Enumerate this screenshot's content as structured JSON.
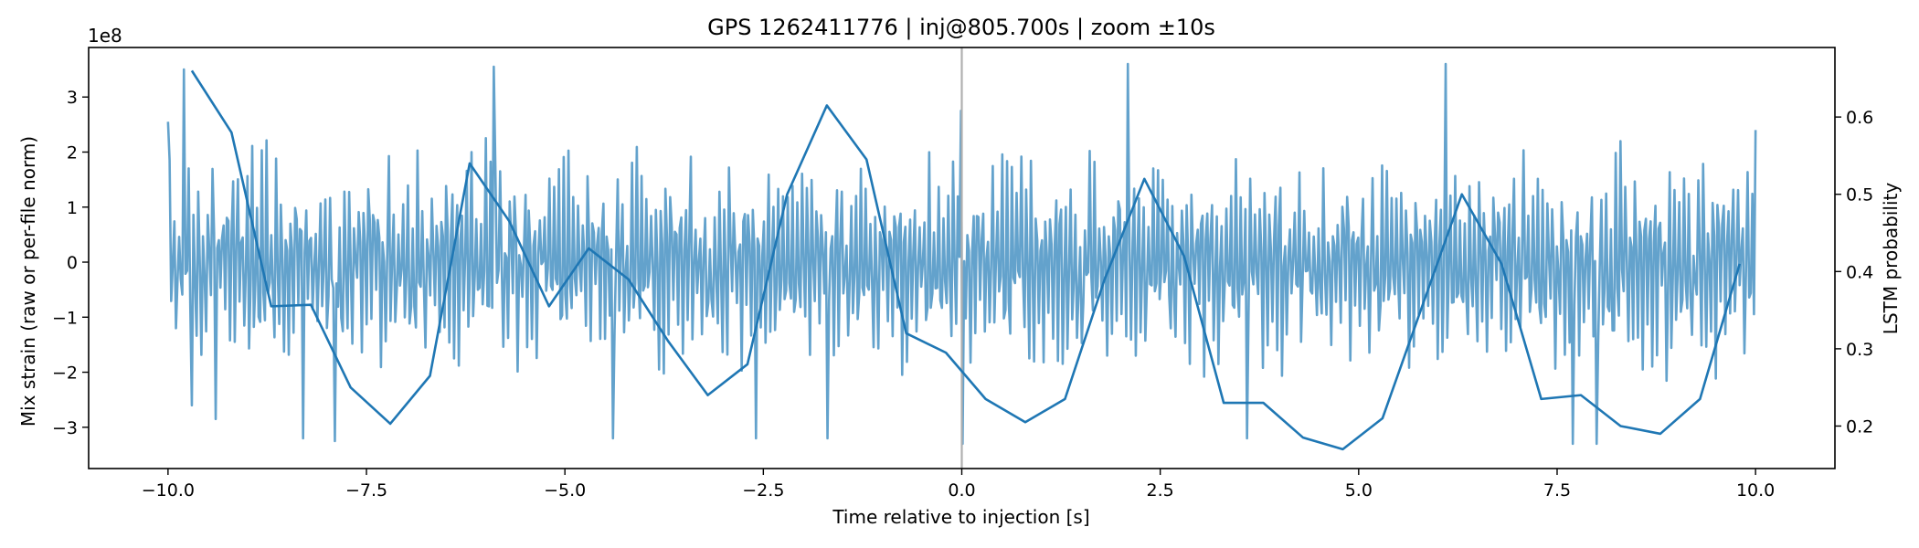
{
  "chart_data": {
    "type": "line",
    "title": "GPS 1262411776 | inj@805.700s | zoom ±10s",
    "xlabel": "Time relative to injection [s]",
    "ylabel_left": "Mix strain (raw or per-file norm)",
    "ylabel_right": "LSTM probability",
    "left_axis_offset_text": "1e8",
    "xlim": [
      -11.0,
      11.0
    ],
    "ylim_left": [
      -3.75,
      3.9
    ],
    "ylim_right": [
      0.145,
      0.69
    ],
    "x_ticks": [
      -10.0,
      -7.5,
      -5.0,
      -2.5,
      0.0,
      2.5,
      5.0,
      7.5,
      10.0
    ],
    "x_tick_labels": [
      "−10.0",
      "−7.5",
      "−5.0",
      "−2.5",
      "0.0",
      "2.5",
      "5.0",
      "7.5",
      "10.0"
    ],
    "y_left_ticks": [
      -3,
      -2,
      -1,
      0,
      1,
      2,
      3
    ],
    "y_left_tick_labels": [
      "−3",
      "−2",
      "−1",
      "0",
      "1",
      "2",
      "3"
    ],
    "y_right_ticks": [
      0.2,
      0.3,
      0.4,
      0.5,
      0.6
    ],
    "y_right_tick_labels": [
      "0.2",
      "0.3",
      "0.4",
      "0.5",
      "0.6"
    ],
    "grid": false,
    "legend": "none",
    "injection_marker_x": 0.0,
    "colors": {
      "strain": "#5b9dc9",
      "probability": "#1f77b4",
      "marker": "#b0b0b0",
      "axes": "#000000"
    },
    "series": [
      {
        "axis": "left",
        "units": "1e8",
        "x_start": -10.0,
        "x_end": 10.0,
        "samples": 1000,
        "note_values_generated": false,
        "values_summary": {
          "min": -3.3,
          "max": 3.6,
          "dominant_period_s": 0.1
        },
        "keypoints": [
          {
            "x": -10.0,
            "y": 2.55
          },
          {
            "x": -9.9,
            "y": -1.2
          },
          {
            "x": -9.8,
            "y": 3.5
          },
          {
            "x": -9.7,
            "y": -2.6
          },
          {
            "x": -9.4,
            "y": -2.85
          },
          {
            "x": -8.3,
            "y": -3.2
          },
          {
            "x": -7.9,
            "y": -3.25
          },
          {
            "x": -5.9,
            "y": 3.55
          },
          {
            "x": -4.4,
            "y": -3.2
          },
          {
            "x": -2.6,
            "y": -3.2
          },
          {
            "x": -1.7,
            "y": -3.2
          },
          {
            "x": 0.0,
            "y": 2.75
          },
          {
            "x": 0.0,
            "y": -3.3
          },
          {
            "x": 2.1,
            "y": 3.6
          },
          {
            "x": 3.6,
            "y": -3.2
          },
          {
            "x": 6.1,
            "y": 3.6
          },
          {
            "x": 7.7,
            "y": -3.3
          },
          {
            "x": 8.0,
            "y": -3.3
          },
          {
            "x": 10.0,
            "y": 2.4
          }
        ]
      },
      {
        "axis": "right",
        "x": [
          -9.7,
          -9.2,
          -8.7,
          -8.2,
          -7.7,
          -7.2,
          -6.7,
          -6.2,
          -5.7,
          -5.2,
          -4.7,
          -4.2,
          -3.7,
          -3.2,
          -2.7,
          -2.2,
          -1.7,
          -1.2,
          -0.7,
          -0.2,
          0.3,
          0.8,
          1.3,
          1.8,
          2.3,
          2.8,
          3.3,
          3.8,
          4.3,
          4.8,
          5.3,
          5.8,
          6.3,
          6.8,
          7.3,
          7.8,
          8.3,
          8.8,
          9.3,
          9.8
        ],
        "y": [
          0.66,
          0.58,
          0.355,
          0.357,
          0.25,
          0.203,
          0.265,
          0.54,
          0.465,
          0.355,
          0.43,
          0.39,
          0.31,
          0.24,
          0.28,
          0.5,
          0.615,
          0.545,
          0.32,
          0.295,
          0.235,
          0.205,
          0.235,
          0.39,
          0.52,
          0.42,
          0.23,
          0.23,
          0.185,
          0.17,
          0.21,
          0.355,
          0.5,
          0.41,
          0.235,
          0.24,
          0.2,
          0.19,
          0.235,
          0.41
        ]
      }
    ]
  }
}
